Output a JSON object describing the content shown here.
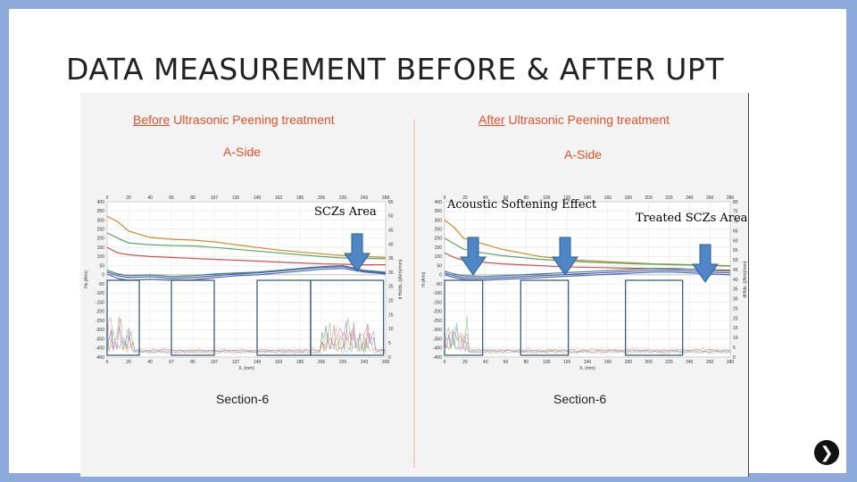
{
  "slide": {
    "title": "DATA MEASUREMENT BEFORE & AFTER UPT",
    "annotations": {
      "sczs_area": "SCZs Area",
      "acoustic_softening": "Acoustic Softening Effect",
      "treated_sczs": "Treated SCZs Area"
    },
    "next_icon": "chevron-right-icon"
  },
  "chart_data": [
    {
      "type": "line",
      "title_emph": "Before",
      "title_rest": " Ultrasonic Peening treatment",
      "subtitle": "A-Side",
      "caption": "Section-6",
      "xlabel": "X, (mm)",
      "ylabel": "Hx (A/m)",
      "y2label": "d Hx/dx, ((A/m)/mm)",
      "xlim": [
        0,
        260
      ],
      "ylim": [
        -450,
        400
      ],
      "y2lim": [
        0,
        55
      ],
      "x_ticks_top": [
        "0",
        "20",
        "40",
        "65",
        "80",
        "107",
        "130",
        "149",
        "163",
        "186",
        "206",
        "226",
        "243",
        "268"
      ],
      "x_ticks_bottom": [
        "0",
        "20",
        "40",
        "67",
        "80",
        "107",
        "137",
        "149",
        "163",
        "186",
        "206",
        "226",
        "243",
        "268"
      ],
      "y_ticks": [
        "400",
        "350",
        "300",
        "250",
        "200",
        "150",
        "100",
        "50",
        "0",
        "-50",
        "-100",
        "-150",
        "-200",
        "-250",
        "-300",
        "-350",
        "-400",
        "-450"
      ],
      "y2_ticks": [
        "55",
        "50",
        "45",
        "40",
        "35",
        "30",
        "25",
        "20",
        "15",
        "10",
        "5",
        "0"
      ],
      "series": [
        {
          "color": "#cc8a2a",
          "x": [
            0,
            10,
            20,
            40,
            60,
            80,
            100,
            120,
            140,
            160,
            180,
            200,
            220,
            240,
            260
          ],
          "y": [
            320,
            290,
            240,
            205,
            195,
            190,
            180,
            165,
            150,
            135,
            125,
            115,
            105,
            100,
            95
          ]
        },
        {
          "color": "#5aa864",
          "x": [
            0,
            10,
            20,
            40,
            60,
            80,
            100,
            120,
            140,
            160,
            180,
            200,
            220,
            240,
            260
          ],
          "y": [
            230,
            200,
            175,
            165,
            160,
            158,
            150,
            140,
            130,
            120,
            110,
            100,
            92,
            90,
            88
          ]
        },
        {
          "color": "#d85050",
          "x": [
            0,
            10,
            20,
            40,
            60,
            80,
            100,
            120,
            140,
            160,
            180,
            200,
            220,
            240,
            260
          ],
          "y": [
            150,
            120,
            110,
            100,
            95,
            90,
            85,
            80,
            75,
            70,
            65,
            60,
            58,
            55,
            55
          ]
        },
        {
          "color": "#6a4ca8",
          "x": [
            0,
            10,
            20,
            40,
            60,
            80,
            100,
            120,
            140,
            160,
            180,
            200,
            220,
            240,
            260
          ],
          "y": [
            15,
            -5,
            -15,
            -10,
            -20,
            -15,
            -5,
            5,
            10,
            20,
            30,
            40,
            45,
            20,
            10
          ]
        },
        {
          "color": "#3a6cc0",
          "x": [
            0,
            10,
            20,
            40,
            60,
            80,
            100,
            120,
            140,
            160,
            180,
            200,
            220,
            240,
            260
          ],
          "y": [
            5,
            -20,
            -30,
            -25,
            -30,
            -28,
            -15,
            -5,
            0,
            10,
            20,
            30,
            35,
            15,
            5
          ]
        },
        {
          "color": "#2a8a8a",
          "x": [
            0,
            10,
            20,
            40,
            60,
            80,
            100,
            120,
            140,
            160,
            180,
            200,
            220,
            240,
            260
          ],
          "y": [
            25,
            5,
            -5,
            0,
            -10,
            -5,
            5,
            10,
            15,
            25,
            35,
            45,
            50,
            25,
            15
          ]
        }
      ],
      "highlight_boxes_x": [
        [
          0,
          30
        ],
        [
          60,
          100
        ],
        [
          140,
          190
        ],
        [
          190,
          258
        ]
      ]
    },
    {
      "type": "line",
      "title_emph": "After",
      "title_rest": " Ultrasonic Peening treatment",
      "subtitle": "A-Side",
      "caption": "Section-6",
      "xlabel": "X, (mm)",
      "ylabel": "H (A/m)",
      "y2label": "dH/dx, ((A/m)/mm)",
      "xlim": [
        0,
        300
      ],
      "ylim": [
        -450,
        400
      ],
      "y2lim": [
        0,
        80
      ],
      "x_ticks_top": [
        "0",
        "20",
        "40",
        "60",
        "80",
        "100",
        "120",
        "140",
        "160",
        "180",
        "200",
        "220",
        "240",
        "260",
        "280"
      ],
      "x_ticks_bottom": [
        "0",
        "20",
        "40",
        "60",
        "80",
        "100",
        "120",
        "140",
        "160",
        "180",
        "200",
        "220",
        "240",
        "260",
        "280"
      ],
      "y_ticks": [
        "400",
        "350",
        "300",
        "250",
        "200",
        "150",
        "100",
        "50",
        "0",
        "-50",
        "-100",
        "-150",
        "-200",
        "-250",
        "-300",
        "-350",
        "-400",
        "-450"
      ],
      "y2_ticks": [
        "80",
        "75",
        "70",
        "65",
        "60",
        "55",
        "50",
        "45",
        "40",
        "35",
        "30",
        "25",
        "20",
        "15",
        "10",
        "5",
        "0"
      ],
      "series": [
        {
          "color": "#cc8a2a",
          "x": [
            0,
            10,
            20,
            40,
            60,
            80,
            100,
            120,
            140,
            160,
            180,
            200,
            220,
            240,
            260,
            280,
            300
          ],
          "y": [
            300,
            260,
            200,
            170,
            140,
            120,
            100,
            90,
            80,
            75,
            70,
            65,
            60,
            58,
            55,
            52,
            50
          ]
        },
        {
          "color": "#5aa864",
          "x": [
            0,
            10,
            20,
            40,
            60,
            80,
            100,
            120,
            140,
            160,
            180,
            200,
            220,
            240,
            260,
            280,
            300
          ],
          "y": [
            200,
            170,
            140,
            120,
            105,
            95,
            85,
            78,
            72,
            68,
            64,
            60,
            58,
            55,
            53,
            50,
            48
          ]
        },
        {
          "color": "#d85050",
          "x": [
            0,
            10,
            20,
            40,
            60,
            80,
            100,
            120,
            140,
            160,
            180,
            200,
            220,
            240,
            260,
            280,
            300
          ],
          "y": [
            120,
            95,
            80,
            70,
            60,
            55,
            50,
            45,
            42,
            40,
            38,
            36,
            34,
            32,
            30,
            28,
            26
          ]
        },
        {
          "color": "#6a4ca8",
          "x": [
            0,
            10,
            20,
            40,
            60,
            80,
            100,
            120,
            140,
            160,
            180,
            200,
            220,
            240,
            260,
            280,
            300
          ],
          "y": [
            10,
            -5,
            -15,
            -20,
            -15,
            -10,
            -5,
            0,
            5,
            10,
            15,
            20,
            25,
            25,
            20,
            15,
            10
          ]
        },
        {
          "color": "#3a6cc0",
          "x": [
            0,
            10,
            20,
            40,
            60,
            80,
            100,
            120,
            140,
            160,
            180,
            200,
            220,
            240,
            260,
            280,
            300
          ],
          "y": [
            0,
            -15,
            -25,
            -30,
            -25,
            -20,
            -15,
            -10,
            -5,
            0,
            5,
            10,
            15,
            15,
            10,
            5,
            0
          ]
        },
        {
          "color": "#2a8a8a",
          "x": [
            0,
            10,
            20,
            40,
            60,
            80,
            100,
            120,
            140,
            160,
            180,
            200,
            220,
            240,
            260,
            280,
            300
          ],
          "y": [
            20,
            5,
            -5,
            -10,
            -5,
            0,
            5,
            10,
            15,
            20,
            25,
            30,
            35,
            35,
            30,
            25,
            20
          ]
        }
      ],
      "highlight_boxes_x": [
        [
          0,
          40
        ],
        [
          80,
          130
        ],
        [
          190,
          250
        ]
      ]
    }
  ]
}
